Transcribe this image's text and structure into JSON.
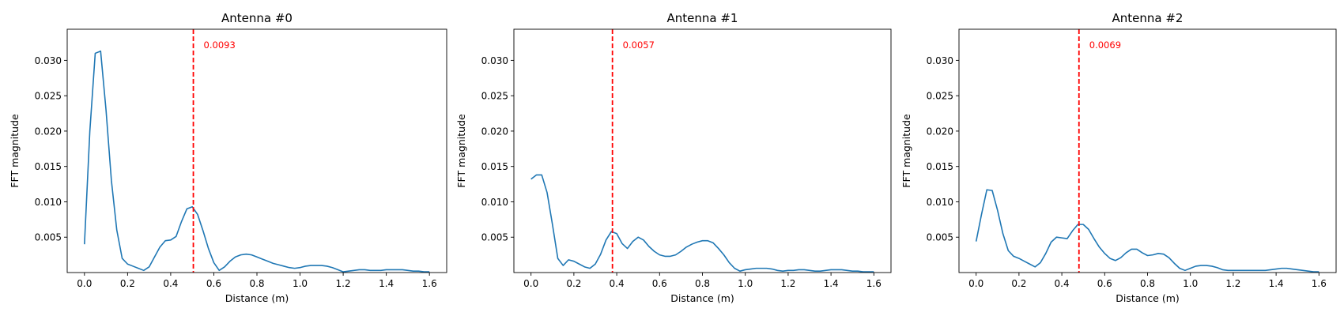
{
  "chart_data": [
    {
      "type": "line",
      "title": "Antenna #0",
      "xlabel": "Distance (m)",
      "ylabel": "FFT magnitude",
      "xlim": [
        -0.08,
        1.68
      ],
      "ylim": [
        0.0,
        0.0344
      ],
      "xticks": [
        "0.0",
        "0.2",
        "0.4",
        "0.6",
        "0.8",
        "1.0",
        "1.2",
        "1.4",
        "1.6"
      ],
      "yticks": [
        "0.005",
        "0.010",
        "0.015",
        "0.020",
        "0.025",
        "0.030"
      ],
      "grid": false,
      "line_color": "#1f77b4",
      "vline": {
        "x": 0.505,
        "label": "0.0093",
        "color": "#ff0000",
        "style": "dashed"
      },
      "series": [
        {
          "x": [
            0.0,
            0.025,
            0.05,
            0.075,
            0.1,
            0.125,
            0.15,
            0.175,
            0.2,
            0.225,
            0.25,
            0.275,
            0.3,
            0.325,
            0.35,
            0.375,
            0.4,
            0.425,
            0.45,
            0.475,
            0.5,
            0.525,
            0.55,
            0.575,
            0.6,
            0.625,
            0.65,
            0.675,
            0.7,
            0.725,
            0.75,
            0.775,
            0.8,
            0.825,
            0.85,
            0.875,
            0.9,
            0.925,
            0.95,
            0.975,
            1.0,
            1.025,
            1.05,
            1.075,
            1.1,
            1.125,
            1.15,
            1.175,
            1.2,
            1.225,
            1.25,
            1.275,
            1.3,
            1.325,
            1.35,
            1.375,
            1.4,
            1.425,
            1.45,
            1.475,
            1.5,
            1.525,
            1.55,
            1.575,
            1.6
          ],
          "y": [
            0.004,
            0.02,
            0.031,
            0.0313,
            0.023,
            0.013,
            0.006,
            0.002,
            0.0012,
            0.0009,
            0.0006,
            0.0003,
            0.0008,
            0.0022,
            0.0036,
            0.0045,
            0.0046,
            0.0051,
            0.0072,
            0.009,
            0.0093,
            0.0082,
            0.0059,
            0.0034,
            0.0014,
            0.0003,
            0.0008,
            0.0016,
            0.0022,
            0.0025,
            0.0026,
            0.0025,
            0.0022,
            0.0019,
            0.0016,
            0.0013,
            0.0011,
            0.0009,
            0.0007,
            0.0006,
            0.0007,
            0.0009,
            0.001,
            0.001,
            0.001,
            0.0009,
            0.0007,
            0.0004,
            0.0001,
            0.0002,
            0.0003,
            0.0004,
            0.0004,
            0.0003,
            0.0003,
            0.0003,
            0.0004,
            0.0004,
            0.0004,
            0.0004,
            0.0003,
            0.0002,
            0.0002,
            0.0001,
            0.0001
          ]
        }
      ]
    },
    {
      "type": "line",
      "title": "Antenna #1",
      "xlabel": "Distance (m)",
      "ylabel": "FFT magnitude",
      "xlim": [
        -0.08,
        1.68
      ],
      "ylim": [
        0.0,
        0.0344
      ],
      "xticks": [
        "0.0",
        "0.2",
        "0.4",
        "0.6",
        "0.8",
        "1.0",
        "1.2",
        "1.4",
        "1.6"
      ],
      "yticks": [
        "0.005",
        "0.010",
        "0.015",
        "0.020",
        "0.025",
        "0.030"
      ],
      "grid": false,
      "line_color": "#1f77b4",
      "vline": {
        "x": 0.38,
        "label": "0.0057",
        "color": "#ff0000",
        "style": "dashed"
      },
      "series": [
        {
          "x": [
            0.0,
            0.025,
            0.05,
            0.075,
            0.1,
            0.125,
            0.15,
            0.175,
            0.2,
            0.225,
            0.25,
            0.275,
            0.3,
            0.325,
            0.35,
            0.375,
            0.4,
            0.425,
            0.45,
            0.475,
            0.5,
            0.525,
            0.55,
            0.575,
            0.6,
            0.625,
            0.65,
            0.675,
            0.7,
            0.725,
            0.75,
            0.775,
            0.8,
            0.825,
            0.85,
            0.875,
            0.9,
            0.925,
            0.95,
            0.975,
            1.0,
            1.025,
            1.05,
            1.075,
            1.1,
            1.125,
            1.15,
            1.175,
            1.2,
            1.225,
            1.25,
            1.275,
            1.3,
            1.325,
            1.35,
            1.375,
            1.4,
            1.425,
            1.45,
            1.475,
            1.5,
            1.525,
            1.55,
            1.575,
            1.6
          ],
          "y": [
            0.0132,
            0.0138,
            0.0138,
            0.0113,
            0.0068,
            0.002,
            0.001,
            0.0018,
            0.0016,
            0.0012,
            0.0008,
            0.0006,
            0.0012,
            0.0026,
            0.0046,
            0.0058,
            0.0055,
            0.0041,
            0.0034,
            0.0044,
            0.005,
            0.0046,
            0.0037,
            0.003,
            0.0025,
            0.0023,
            0.0023,
            0.0025,
            0.003,
            0.0036,
            0.004,
            0.0043,
            0.0045,
            0.0045,
            0.0042,
            0.0034,
            0.0025,
            0.0014,
            0.0006,
            0.0002,
            0.0004,
            0.0005,
            0.0006,
            0.0006,
            0.0006,
            0.0005,
            0.0003,
            0.0002,
            0.0003,
            0.0003,
            0.0004,
            0.0004,
            0.0003,
            0.0002,
            0.0002,
            0.0003,
            0.0004,
            0.0004,
            0.0004,
            0.0003,
            0.0002,
            0.0002,
            0.0001,
            0.0001,
            0.0001
          ]
        }
      ]
    },
    {
      "type": "line",
      "title": "Antenna #2",
      "xlabel": "Distance (m)",
      "ylabel": "FFT magnitude",
      "xlim": [
        -0.08,
        1.68
      ],
      "ylim": [
        0.0,
        0.0344
      ],
      "xticks": [
        "0.0",
        "0.2",
        "0.4",
        "0.6",
        "0.8",
        "1.0",
        "1.2",
        "1.4",
        "1.6"
      ],
      "yticks": [
        "0.005",
        "0.010",
        "0.015",
        "0.020",
        "0.025",
        "0.030"
      ],
      "grid": false,
      "line_color": "#1f77b4",
      "vline": {
        "x": 0.48,
        "label": "0.0069",
        "color": "#ff0000",
        "style": "dashed"
      },
      "series": [
        {
          "x": [
            0.0,
            0.025,
            0.05,
            0.075,
            0.1,
            0.125,
            0.15,
            0.175,
            0.2,
            0.225,
            0.25,
            0.275,
            0.3,
            0.325,
            0.35,
            0.375,
            0.4,
            0.425,
            0.45,
            0.475,
            0.5,
            0.525,
            0.55,
            0.575,
            0.6,
            0.625,
            0.65,
            0.675,
            0.7,
            0.725,
            0.75,
            0.775,
            0.8,
            0.825,
            0.85,
            0.875,
            0.9,
            0.925,
            0.95,
            0.975,
            1.0,
            1.025,
            1.05,
            1.075,
            1.1,
            1.125,
            1.15,
            1.175,
            1.2,
            1.225,
            1.25,
            1.275,
            1.3,
            1.325,
            1.35,
            1.375,
            1.4,
            1.425,
            1.45,
            1.475,
            1.5,
            1.525,
            1.55,
            1.575,
            1.6
          ],
          "y": [
            0.0044,
            0.0082,
            0.0117,
            0.0116,
            0.0088,
            0.0055,
            0.0031,
            0.0023,
            0.002,
            0.0016,
            0.0012,
            0.0008,
            0.0014,
            0.0027,
            0.0043,
            0.005,
            0.0049,
            0.0048,
            0.0059,
            0.0068,
            0.0068,
            0.0061,
            0.0048,
            0.0036,
            0.0027,
            0.002,
            0.0017,
            0.0021,
            0.0028,
            0.0033,
            0.0033,
            0.0028,
            0.0024,
            0.0025,
            0.0027,
            0.0026,
            0.0021,
            0.0013,
            0.0006,
            0.0003,
            0.0006,
            0.0009,
            0.001,
            0.001,
            0.0009,
            0.0007,
            0.0004,
            0.0003,
            0.0003,
            0.0003,
            0.0003,
            0.0003,
            0.0003,
            0.0003,
            0.0003,
            0.0004,
            0.0005,
            0.0006,
            0.0006,
            0.0005,
            0.0004,
            0.0003,
            0.0002,
            0.0001,
            0.0001
          ]
        }
      ]
    }
  ]
}
